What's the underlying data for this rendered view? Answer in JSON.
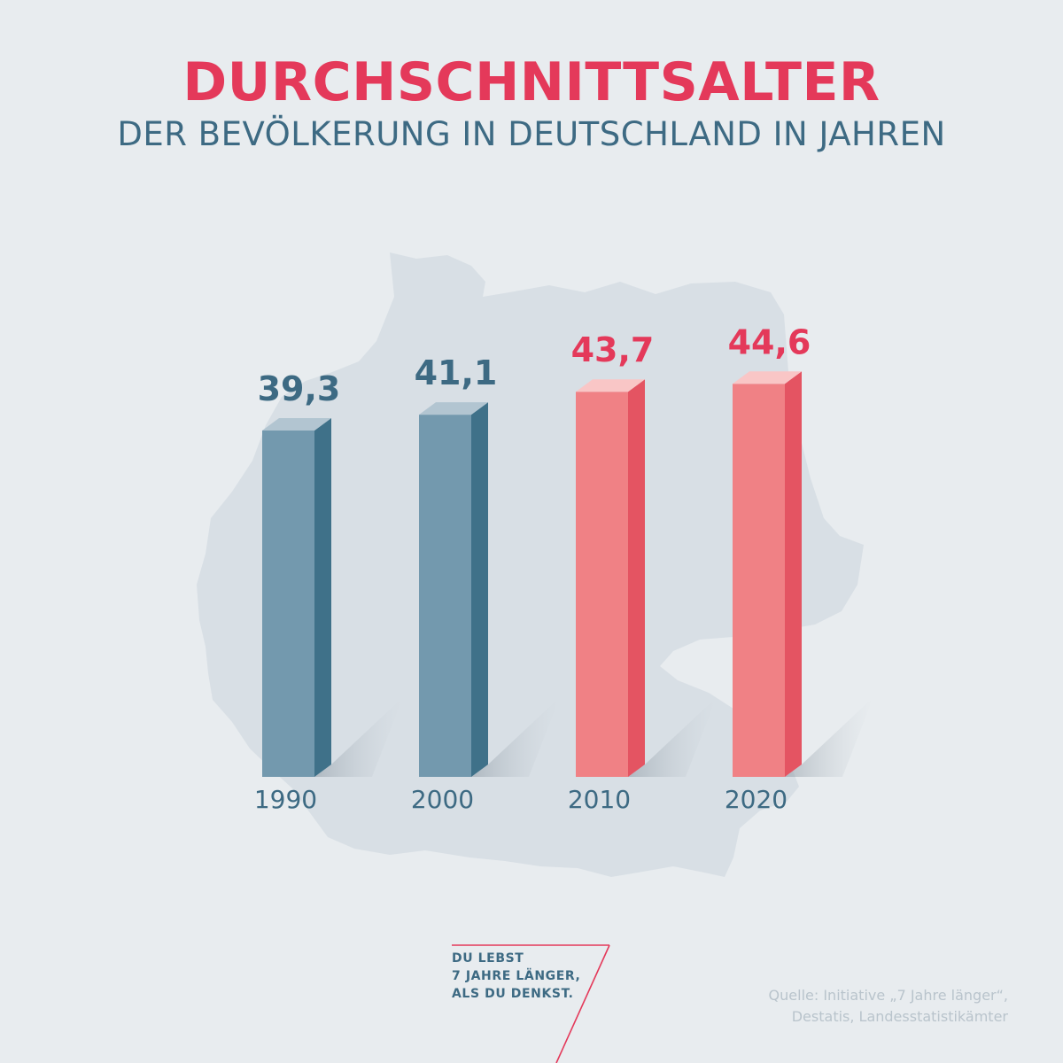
{
  "header": {
    "title": "DURCHSCHNITTSALTER",
    "subtitle": "DER BEVÖLKERUNG IN DEUTSCHLAND IN JAHREN"
  },
  "chart_data": {
    "type": "bar",
    "title": "DURCHSCHNITTSALTER",
    "subtitle": "DER BEVÖLKERUNG IN DEUTSCHLAND IN JAHREN",
    "categories": [
      "1990",
      "2000",
      "2010",
      "2020"
    ],
    "values": [
      39.3,
      41.1,
      43.7,
      44.6
    ],
    "value_labels": [
      "39,3",
      "41,1",
      "43,7",
      "44,6"
    ],
    "xlabel": "",
    "ylabel": "",
    "grid": false,
    "legend": "none",
    "bar_colors": [
      "#7399ae",
      "#7399ae",
      "#f08185",
      "#f08185"
    ]
  },
  "colors": {
    "accent_red": "#e4395a",
    "accent_blue": "#3d6a83",
    "background": "#e8ecef",
    "map": "#d8dfe5"
  },
  "logo": {
    "line1": "DU LEBST",
    "line2": "7 JAHRE LÄNGER,",
    "line3": "ALS DU DENKST."
  },
  "source": {
    "line1": "Quelle: Initiative „7 Jahre länger“,",
    "line2": "Destatis, Landesstatistikämter"
  }
}
